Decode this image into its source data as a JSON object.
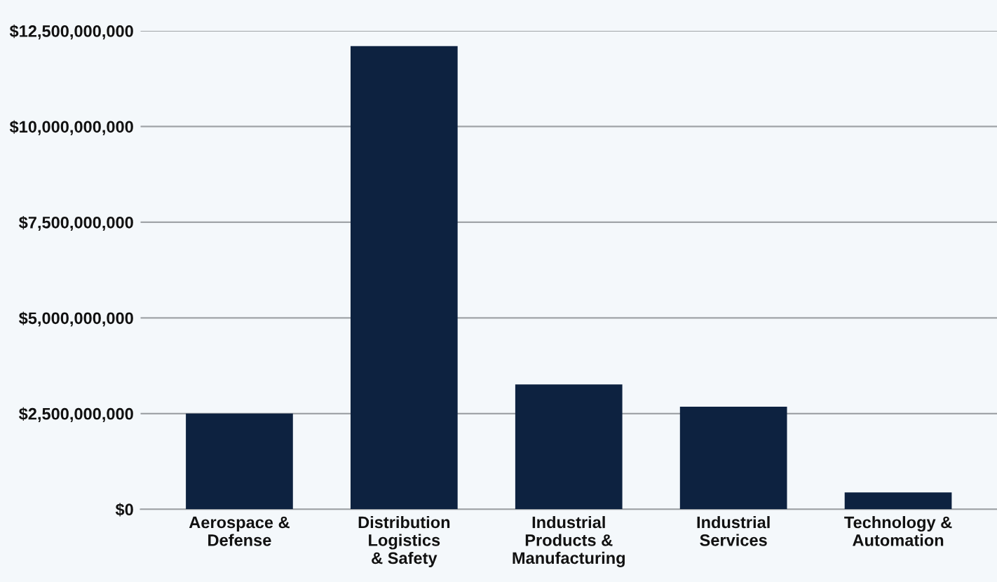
{
  "chart_data": {
    "type": "bar",
    "categories": [
      "Aerospace &\nDefense",
      "Distribution\nLogistics\n& Safety",
      "Industrial\nProducts &\nManufacturing",
      "Industrial\nServices",
      "Technology &\nAutomation"
    ],
    "values": [
      2500000000,
      12100000000,
      3260000000,
      2680000000,
      440000000
    ],
    "color": "#0d2240",
    "ylim": [
      0,
      12500000000
    ],
    "yticks": [
      {
        "value": 0,
        "label": "$0"
      },
      {
        "value": 2500000000,
        "label": "$2,500,000,000"
      },
      {
        "value": 5000000000,
        "label": "$5,000,000,000"
      },
      {
        "value": 7500000000,
        "label": "$7,500,000,000"
      },
      {
        "value": 10000000000,
        "label": "$10,000,000,000"
      },
      {
        "value": 12500000000,
        "label": "$12,500,000,000"
      }
    ],
    "grid": "y"
  }
}
